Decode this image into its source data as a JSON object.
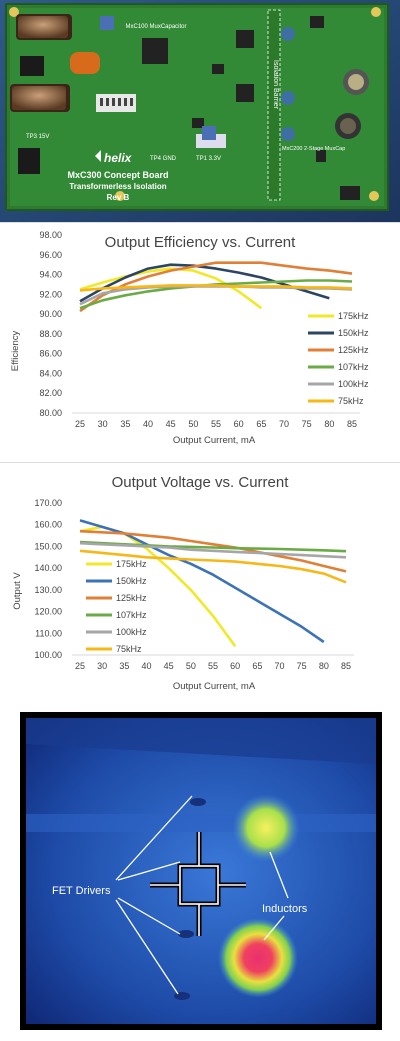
{
  "photo": {
    "board_lines": [
      "MxC300 Concept Board",
      "Transformerless Isolation",
      "Rev B"
    ],
    "brand": "helix",
    "barrier_label": "Isolation Barrier",
    "stage_label": "MxC200 2-Stage MuxCap",
    "mux_label": "MxC100 MuxCapacitor",
    "tp_labels": [
      "TP1 3.3V",
      "TP3 15V",
      "TP4 GND"
    ]
  },
  "thermal": {
    "label_fet": "FET Drivers",
    "label_inductors": "Inductors"
  },
  "chart_data": [
    {
      "type": "line",
      "title": "Output Efficiency vs. Current",
      "xlabel": "Output Current, mA",
      "ylabel": "Efficiency",
      "ylim": [
        80,
        98
      ],
      "yticks": [
        "80.00",
        "82.00",
        "84.00",
        "86.00",
        "88.00",
        "90.00",
        "92.00",
        "94.00",
        "96.00",
        "98.00"
      ],
      "x": [
        25,
        30,
        35,
        40,
        45,
        50,
        55,
        60,
        65,
        70,
        75,
        80,
        85
      ],
      "grid": false,
      "legend": "right",
      "series": [
        {
          "name": "175kHz",
          "color": "#f2e82a",
          "values": [
            92.5,
            93.2,
            93.8,
            94.3,
            94.6,
            94.4,
            93.6,
            92.3,
            90.6,
            null,
            null,
            null,
            null
          ]
        },
        {
          "name": "150kHz",
          "color": "#2b4563",
          "values": [
            91.3,
            92.6,
            93.7,
            94.6,
            95.0,
            94.9,
            94.6,
            94.2,
            93.7,
            93.0,
            92.3,
            91.6,
            null
          ]
        },
        {
          "name": "125kHz",
          "color": "#e07f36",
          "values": [
            90.3,
            91.9,
            93.0,
            93.8,
            94.4,
            94.8,
            95.2,
            95.2,
            95.2,
            94.9,
            94.6,
            94.4,
            94.1
          ]
        },
        {
          "name": "107kHz",
          "color": "#6aab46",
          "values": [
            90.6,
            91.4,
            91.9,
            92.3,
            92.6,
            92.8,
            93.0,
            93.1,
            93.2,
            93.3,
            93.4,
            93.4,
            93.3
          ]
        },
        {
          "name": "100kHz",
          "color": "#a6a6a6",
          "values": [
            91.0,
            92.1,
            92.5,
            92.7,
            92.8,
            92.8,
            92.8,
            92.8,
            92.7,
            92.7,
            92.6,
            92.6,
            92.5
          ]
        },
        {
          "name": "75kHz",
          "color": "#f7b817",
          "values": [
            92.4,
            92.6,
            92.7,
            92.8,
            92.9,
            92.9,
            92.9,
            92.8,
            92.8,
            92.8,
            92.7,
            92.7,
            92.6
          ]
        }
      ]
    },
    {
      "type": "line",
      "title": "Output Voltage vs. Current",
      "xlabel": "Output Current, mA",
      "ylabel": "Output V",
      "ylim": [
        100,
        170
      ],
      "yticks": [
        "100.00",
        "110.00",
        "120.00",
        "130.00",
        "140.00",
        "150.00",
        "160.00",
        "170.00"
      ],
      "x": [
        25,
        30,
        35,
        40,
        45,
        50,
        55,
        60,
        65,
        70,
        75,
        80,
        85
      ],
      "grid": false,
      "legend": "left",
      "series": [
        {
          "name": "175kHz",
          "color": "#f2e82a",
          "values": [
            157,
            159,
            156,
            149,
            140,
            130,
            118,
            104,
            null,
            null,
            null,
            null,
            null
          ]
        },
        {
          "name": "150kHz",
          "color": "#3b72b8",
          "values": [
            162,
            159,
            156,
            151,
            146,
            142,
            137,
            131,
            125,
            119,
            113,
            106,
            null
          ]
        },
        {
          "name": "125kHz",
          "color": "#e07f36",
          "values": [
            157,
            156.5,
            156,
            155,
            154,
            152.5,
            151,
            149.5,
            147.5,
            145.5,
            143.5,
            141,
            138.5
          ]
        },
        {
          "name": "107kHz",
          "color": "#6aab46",
          "values": [
            152,
            151.5,
            151,
            150.5,
            150,
            149.8,
            149.5,
            149.2,
            149,
            148.8,
            148.5,
            148.2,
            147.8
          ]
        },
        {
          "name": "100kHz",
          "color": "#a6a6a6",
          "values": [
            151.5,
            151,
            150.5,
            150,
            149.5,
            148.5,
            148,
            147.5,
            147,
            146.5,
            146,
            145.5,
            145
          ]
        },
        {
          "name": "75kHz",
          "color": "#f7b817",
          "values": [
            148,
            147,
            146,
            145,
            144.5,
            144,
            143.5,
            143,
            142,
            141,
            139.5,
            137.5,
            133.5
          ]
        }
      ]
    }
  ],
  "xticks": [
    "25",
    "30",
    "35",
    "40",
    "45",
    "50",
    "55",
    "60",
    "65",
    "70",
    "75",
    "80",
    "85"
  ]
}
